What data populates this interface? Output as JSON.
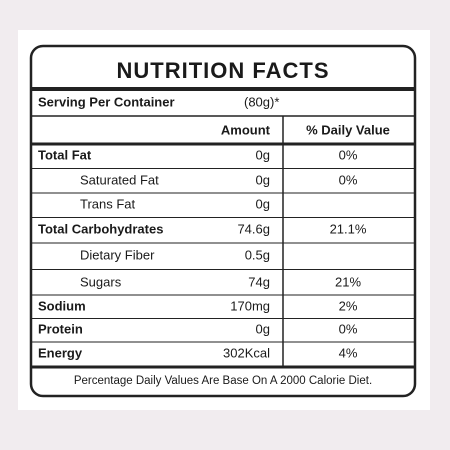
{
  "header": {
    "title": "NUTRITION FACTS"
  },
  "serving": {
    "label": "Serving Per Container",
    "value": "(80g)*"
  },
  "table": {
    "columns": [
      "Amount",
      "% Daily Value"
    ],
    "rows": [
      {
        "name": "Total Fat",
        "amount": "0g",
        "dv": "0%"
      },
      {
        "name": "Saturated Fat",
        "amount": "0g",
        "dv": "0%"
      },
      {
        "name": "Trans Fat",
        "amount": "0g"
      },
      {
        "name": "Total Carbohydrates",
        "amount": "74.6g",
        "dv": "21.1%"
      },
      {
        "name": "Dietary Fiber",
        "amount": "0.5g"
      },
      {
        "name": "Sugars",
        "amount": "74g",
        "dv": "21%"
      },
      {
        "name": "Sodium",
        "amount": "170mg",
        "dv": "2%"
      },
      {
        "name": "Protein",
        "amount": "0g",
        "dv": "0%"
      },
      {
        "name": "Energy",
        "amount": "302Kcal",
        "dv": "4%"
      }
    ]
  },
  "footnote": "Percentage Daily Values Are Base On A 2000 Calorie Diet."
}
